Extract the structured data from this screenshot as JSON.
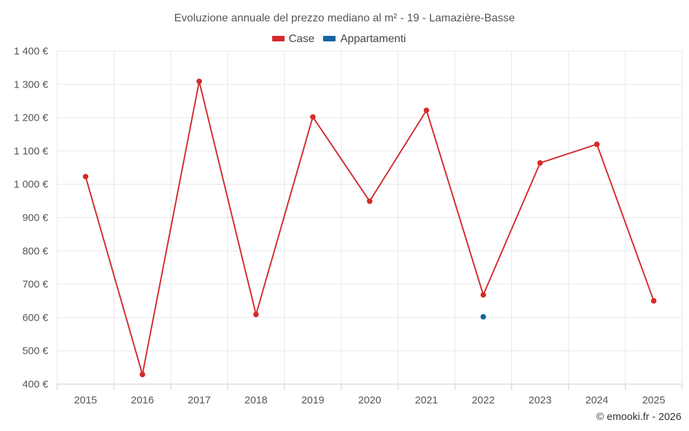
{
  "chart_data": {
    "type": "line",
    "title": "Evoluzione annuale del prezzo mediano al m² - 19 - Lamazière-Basse",
    "categories": [
      "2015",
      "2016",
      "2017",
      "2018",
      "2019",
      "2020",
      "2021",
      "2022",
      "2023",
      "2024",
      "2025"
    ],
    "series": [
      {
        "name": "Case",
        "color": "#d42a2a",
        "values": [
          1023,
          429,
          1309,
          609,
          1202,
          949,
          1222,
          668,
          1064,
          1120,
          650
        ]
      },
      {
        "name": "Appartamenti",
        "color": "#1566a0",
        "values": [
          null,
          null,
          null,
          null,
          null,
          null,
          null,
          602,
          null,
          null,
          null
        ]
      }
    ],
    "ylim": [
      400,
      1400
    ],
    "yticks": [
      "400 €",
      "500 €",
      "600 €",
      "700 €",
      "800 €",
      "900 €",
      "1 000 €",
      "1 100 €",
      "1 200 €",
      "1 300 €",
      "1 400 €"
    ],
    "ytick_values": [
      400,
      500,
      600,
      700,
      800,
      900,
      1000,
      1100,
      1200,
      1300,
      1400
    ],
    "grid": true,
    "legend_position": "top-center"
  },
  "credit": "© emooki.fr - 2026"
}
